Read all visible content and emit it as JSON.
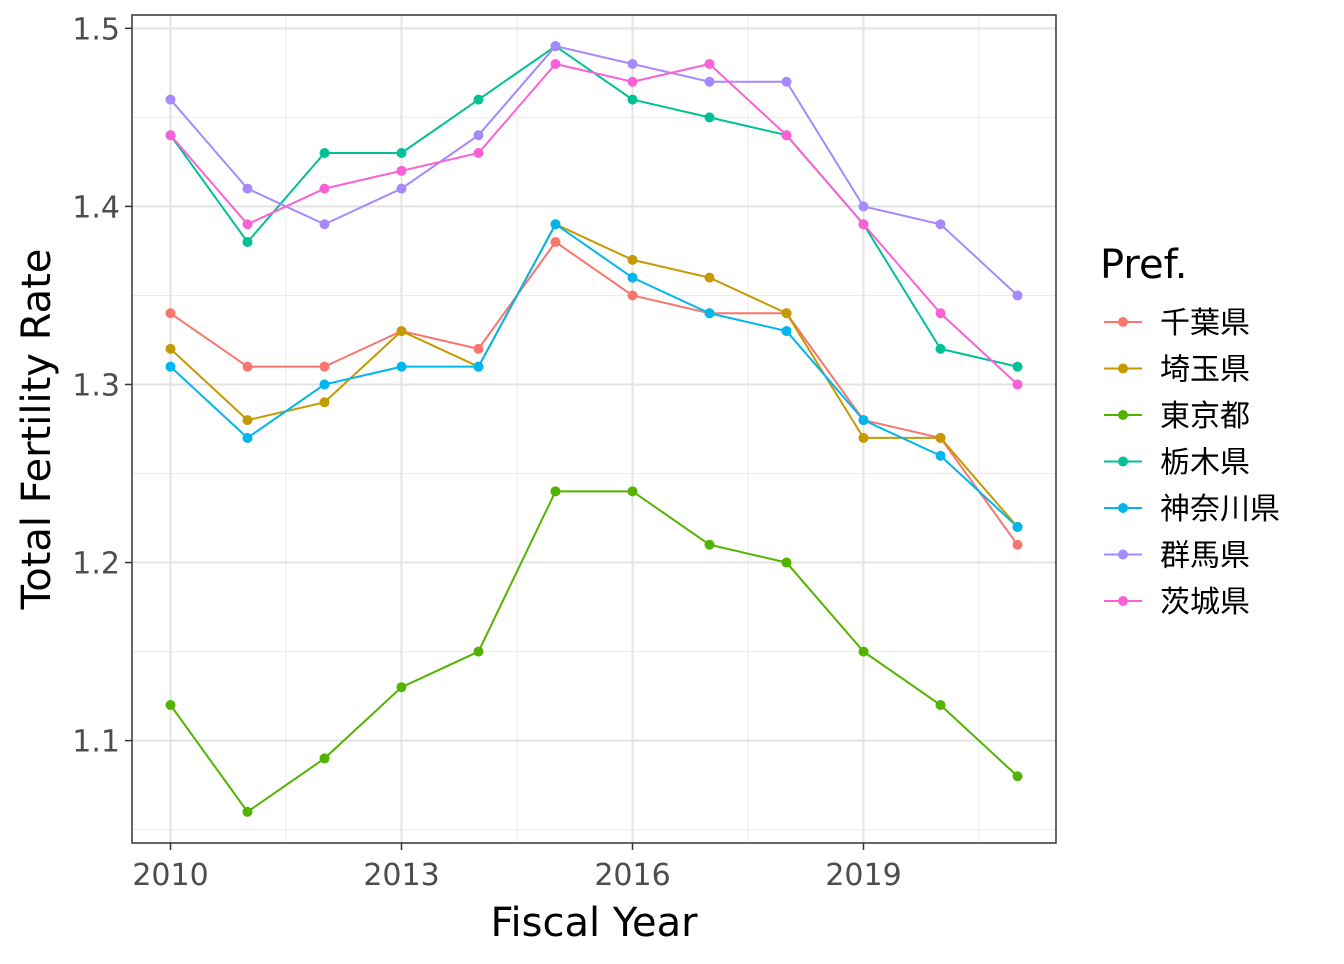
{
  "chart_data": {
    "type": "line",
    "xlabel": "Fiscal Year",
    "ylabel": "Total Fertility Rate",
    "x": [
      2010,
      2011,
      2012,
      2013,
      2014,
      2015,
      2016,
      2017,
      2018,
      2019,
      2020,
      2021
    ],
    "xlim": [
      2009.5,
      2021.5
    ],
    "ylim": [
      1.0425,
      1.5075
    ],
    "x_ticks": [
      2010,
      2013,
      2016,
      2019
    ],
    "x_tick_labels": [
      "2010",
      "2013",
      "2016",
      "2019"
    ],
    "y_ticks": [
      1.1,
      1.2,
      1.3,
      1.4,
      1.5
    ],
    "y_tick_labels": [
      "1.1",
      "1.2",
      "1.3",
      "1.4",
      "1.5"
    ],
    "grid": true,
    "legend": {
      "title": "Pref.",
      "position": "right"
    },
    "series": [
      {
        "name": "千葉県",
        "color": "#F8766D",
        "values": [
          1.34,
          1.31,
          1.31,
          1.33,
          1.32,
          1.38,
          1.35,
          1.34,
          1.34,
          1.28,
          1.27,
          1.21
        ]
      },
      {
        "name": "埼玉県",
        "color": "#C49A00",
        "values": [
          1.32,
          1.28,
          1.29,
          1.33,
          1.31,
          1.39,
          1.37,
          1.36,
          1.34,
          1.27,
          1.27,
          1.22
        ]
      },
      {
        "name": "東京都",
        "color": "#53B400",
        "values": [
          1.12,
          1.06,
          1.09,
          1.13,
          1.15,
          1.24,
          1.24,
          1.21,
          1.2,
          1.15,
          1.12,
          1.08
        ]
      },
      {
        "name": "栃木県",
        "color": "#00C094",
        "values": [
          1.44,
          1.38,
          1.43,
          1.43,
          1.46,
          1.49,
          1.46,
          1.45,
          1.44,
          1.39,
          1.32,
          1.31
        ]
      },
      {
        "name": "神奈川県",
        "color": "#00B6EB",
        "values": [
          1.31,
          1.27,
          1.3,
          1.31,
          1.31,
          1.39,
          1.36,
          1.34,
          1.33,
          1.28,
          1.26,
          1.22
        ]
      },
      {
        "name": "群馬県",
        "color": "#A58AFF",
        "values": [
          1.46,
          1.41,
          1.39,
          1.41,
          1.44,
          1.49,
          1.48,
          1.47,
          1.47,
          1.4,
          1.39,
          1.35
        ]
      },
      {
        "name": "茨城県",
        "color": "#FB61D7",
        "values": [
          1.44,
          1.39,
          1.41,
          1.42,
          1.43,
          1.48,
          1.47,
          1.48,
          1.44,
          1.39,
          1.34,
          1.3
        ]
      }
    ]
  }
}
